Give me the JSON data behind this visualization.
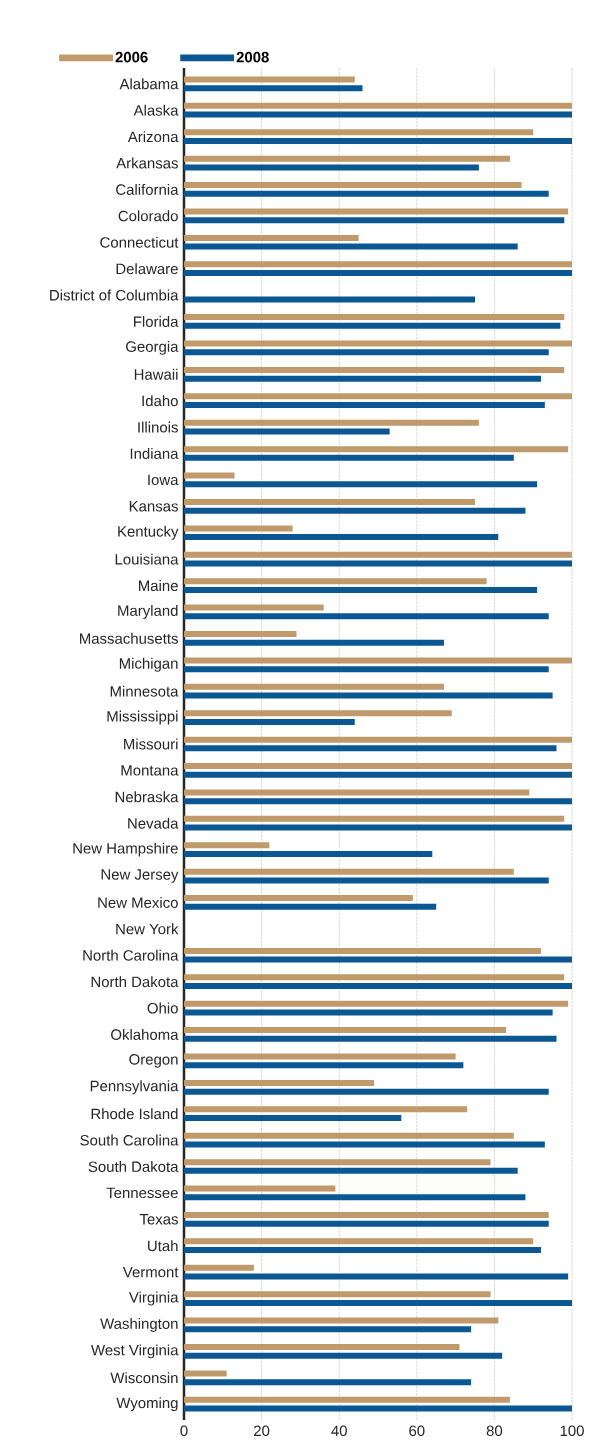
{
  "chart_data": {
    "type": "bar",
    "orientation": "horizontal",
    "categories": [
      "Alabama",
      "Alaska",
      "Arizona",
      "Arkansas",
      "California",
      "Colorado",
      "Connecticut",
      "Delaware",
      "District of Columbia",
      "Florida",
      "Georgia",
      "Hawaii",
      "Idaho",
      "Illinois",
      "Indiana",
      "Iowa",
      "Kansas",
      "Kentucky",
      "Louisiana",
      "Maine",
      "Maryland",
      "Massachusetts",
      "Michigan",
      "Minnesota",
      "Mississippi",
      "Missouri",
      "Montana",
      "Nebraska",
      "Nevada",
      "New Hampshire",
      "New Jersey",
      "New Mexico",
      "New York",
      "North Carolina",
      "North Dakota",
      "Ohio",
      "Oklahoma",
      "Oregon",
      "Pennsylvania",
      "Rhode Island",
      "South Carolina",
      "South Dakota",
      "Tennessee",
      "Texas",
      "Utah",
      "Vermont",
      "Virginia",
      "Washington",
      "West Virginia",
      "Wisconsin",
      "Wyoming"
    ],
    "series": [
      {
        "name": "2006",
        "color": "#c19a6b",
        "values": [
          44,
          100,
          90,
          84,
          87,
          99,
          45,
          100,
          null,
          98,
          100,
          98,
          100,
          76,
          99,
          13,
          75,
          28,
          100,
          78,
          36,
          29,
          100,
          67,
          69,
          100,
          100,
          89,
          98,
          22,
          85,
          59,
          null,
          92,
          98,
          99,
          83,
          70,
          49,
          73,
          85,
          79,
          39,
          94,
          90,
          18,
          79,
          81,
          71,
          11,
          84
        ]
      },
      {
        "name": "2008",
        "color": "#0b5794",
        "values": [
          46,
          100,
          100,
          76,
          94,
          98,
          86,
          100,
          75,
          97,
          94,
          92,
          93,
          53,
          85,
          91,
          88,
          81,
          100,
          91,
          94,
          67,
          94,
          95,
          44,
          96,
          100,
          100,
          100,
          64,
          94,
          65,
          null,
          100,
          100,
          95,
          96,
          72,
          94,
          56,
          93,
          86,
          88,
          94,
          92,
          99,
          100,
          74,
          82,
          74,
          100
        ]
      }
    ],
    "xlim": [
      0,
      100
    ],
    "xticks": [
      0,
      20,
      40,
      60,
      80,
      100
    ],
    "grid": "x",
    "legend": "top left"
  }
}
